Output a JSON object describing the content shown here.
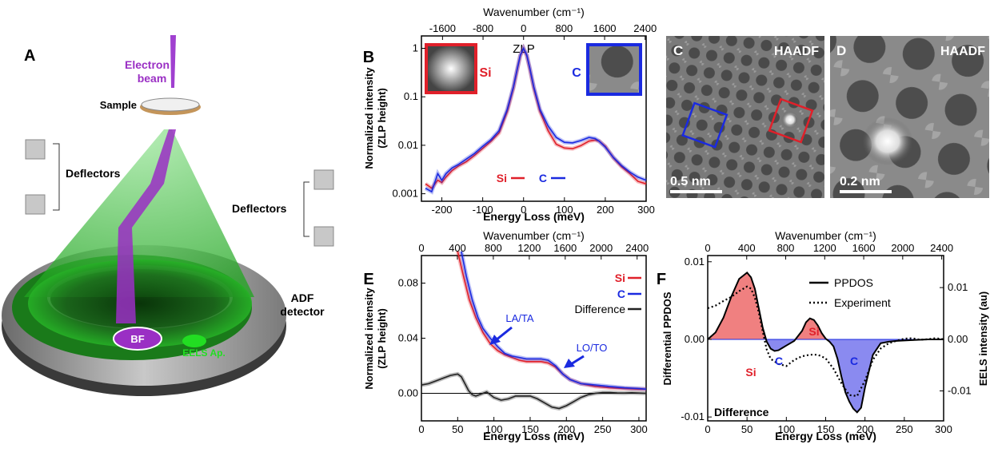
{
  "panels": {
    "A": {
      "letter": "A",
      "electron_beam": "Electron beam",
      "sample": "Sample",
      "deflectors_left": "Deflectors",
      "deflectors_right": "Deflectors",
      "adf_detector": "ADF detector",
      "bf": "BF",
      "eels_ap": "EELS Ap."
    },
    "C": {
      "letter": "C",
      "label": "HAADF",
      "scale": "0.5 nm"
    },
    "D": {
      "letter": "D",
      "label": "HAADF",
      "scale": "0.2 nm"
    }
  },
  "colors": {
    "si": "#e0202a",
    "c": "#1a2ae0",
    "difference": "#222222",
    "green": "#22dd22",
    "purple": "#9a2fc4"
  },
  "chart_data": [
    {
      "panel": "B",
      "type": "line",
      "xlabel": "Energy Loss (meV)",
      "ylabel": "Normalized intensity (ZLP height)",
      "top_xlabel": "Wavenumber (cm⁻¹)",
      "xlim": [
        -250,
        300
      ],
      "ylim": [
        0.0007,
        1.8
      ],
      "y_scale": "log",
      "x_ticks": [
        "-200",
        "-100",
        "0",
        "100",
        "200",
        "300"
      ],
      "y_ticks": [
        "0.001",
        "0.01",
        "0.1",
        "1"
      ],
      "top_ticks": [
        "-1600",
        "-800",
        "0",
        "800",
        "1600",
        "2400"
      ],
      "annotations": {
        "zlp": "ZLP",
        "inset_si": "Si",
        "inset_c": "C"
      },
      "legend": {
        "si": "Si",
        "c": "C"
      },
      "series": [
        {
          "name": "Si",
          "color": "#e0202a",
          "x": [
            -240,
            -225,
            -210,
            -200,
            -190,
            -175,
            -160,
            -140,
            -120,
            -100,
            -80,
            -60,
            -40,
            -25,
            -15,
            -8,
            0,
            8,
            15,
            25,
            40,
            60,
            80,
            100,
            120,
            140,
            160,
            175,
            185,
            200,
            220,
            240,
            260,
            280,
            300
          ],
          "y": [
            0.0016,
            0.0013,
            0.0019,
            0.0017,
            0.0022,
            0.003,
            0.0037,
            0.0046,
            0.0062,
            0.0086,
            0.012,
            0.018,
            0.05,
            0.15,
            0.38,
            0.7,
            1.0,
            0.7,
            0.38,
            0.15,
            0.05,
            0.02,
            0.0105,
            0.0088,
            0.0085,
            0.0098,
            0.0122,
            0.0128,
            0.0122,
            0.0095,
            0.0055,
            0.0036,
            0.0026,
            0.0018,
            0.0016
          ]
        },
        {
          "name": "C",
          "color": "#1a2ae0",
          "x": [
            -240,
            -225,
            -210,
            -200,
            -190,
            -175,
            -160,
            -140,
            -120,
            -100,
            -80,
            -60,
            -40,
            -25,
            -15,
            -8,
            0,
            8,
            15,
            25,
            40,
            60,
            80,
            100,
            120,
            140,
            160,
            175,
            185,
            200,
            220,
            240,
            260,
            280,
            300
          ],
          "y": [
            0.0013,
            0.0011,
            0.0026,
            0.0019,
            0.0026,
            0.0034,
            0.004,
            0.0052,
            0.0068,
            0.0095,
            0.013,
            0.02,
            0.055,
            0.16,
            0.4,
            0.72,
            1.0,
            0.72,
            0.4,
            0.16,
            0.055,
            0.025,
            0.0145,
            0.0115,
            0.0112,
            0.0125,
            0.0145,
            0.0138,
            0.0122,
            0.0092,
            0.0056,
            0.0038,
            0.0028,
            0.0022,
            0.0019
          ]
        }
      ]
    },
    {
      "panel": "E",
      "type": "line",
      "xlabel": "Energy Loss (meV)",
      "ylabel": "Normalized intensity (ZLP height)",
      "top_xlabel": "Wavenumber (cm⁻¹)",
      "xlim": [
        0,
        310
      ],
      "ylim": [
        -0.02,
        0.1
      ],
      "x_ticks": [
        "0",
        "50",
        "100",
        "150",
        "200",
        "250",
        "300"
      ],
      "y_ticks": [
        "0.00",
        "0.04",
        "0.08"
      ],
      "top_ticks": [
        "0",
        "400",
        "800",
        "1200",
        "1600",
        "2000",
        "2400"
      ],
      "legend": {
        "si": "Si",
        "c": "C",
        "difference": "Difference"
      },
      "annotations": {
        "la_ta": "LA/TA",
        "lo_to": "LO/TO"
      },
      "series": [
        {
          "name": "Si",
          "color": "#e0202a",
          "x": [
            50,
            58,
            66,
            75,
            85,
            95,
            105,
            115,
            125,
            135,
            145,
            155,
            165,
            175,
            185,
            195,
            205,
            220,
            240,
            260,
            280,
            300,
            310
          ],
          "y": [
            0.103,
            0.085,
            0.068,
            0.055,
            0.044,
            0.036,
            0.031,
            0.028,
            0.026,
            0.024,
            0.023,
            0.023,
            0.023,
            0.022,
            0.019,
            0.014,
            0.01,
            0.007,
            0.005,
            0.004,
            0.0035,
            0.003,
            0.003
          ]
        },
        {
          "name": "C",
          "color": "#1a2ae0",
          "x": [
            55,
            62,
            70,
            78,
            85,
            95,
            105,
            115,
            125,
            135,
            145,
            155,
            165,
            175,
            185,
            195,
            205,
            220,
            240,
            260,
            280,
            300,
            310
          ],
          "y": [
            0.103,
            0.085,
            0.068,
            0.055,
            0.047,
            0.04,
            0.034,
            0.029,
            0.027,
            0.026,
            0.025,
            0.025,
            0.025,
            0.024,
            0.02,
            0.014,
            0.01,
            0.007,
            0.006,
            0.005,
            0.004,
            0.0035,
            0.003
          ]
        },
        {
          "name": "Difference",
          "color": "#222222",
          "x": [
            0,
            10,
            20,
            30,
            40,
            50,
            55,
            60,
            65,
            70,
            75,
            80,
            90,
            100,
            110,
            120,
            130,
            140,
            150,
            160,
            170,
            180,
            190,
            200,
            210,
            220,
            230,
            240,
            250,
            260,
            270,
            280,
            290,
            300,
            310
          ],
          "y": [
            0.006,
            0.007,
            0.009,
            0.011,
            0.013,
            0.014,
            0.012,
            0.007,
            0.002,
            -0.001,
            -0.002,
            -0.001,
            0.001,
            -0.003,
            -0.005,
            -0.004,
            -0.002,
            -0.002,
            -0.002,
            -0.004,
            -0.007,
            -0.01,
            -0.011,
            -0.009,
            -0.006,
            -0.003,
            -0.001,
            0.0,
            0.0005,
            0.0005,
            0.0003,
            0.0002,
            0.0004,
            0.0002,
            0.0
          ]
        }
      ]
    },
    {
      "panel": "F",
      "type": "area",
      "xlabel": "Energy Loss (meV)",
      "ylabel": "Differential PPDOS",
      "y2label": "EELS intensity (au)",
      "top_xlabel": "Wavenumber (cm⁻¹)",
      "xlim": [
        0,
        300
      ],
      "ylim": [
        -0.0105,
        0.0108
      ],
      "y2lim": [
        -0.0158,
        0.0162
      ],
      "x_ticks": [
        "0",
        "50",
        "100",
        "150",
        "200",
        "250",
        "300"
      ],
      "y_ticks": [
        "0.01",
        "0.00",
        "-0.01"
      ],
      "y2_ticks": [
        "0.01",
        "0.00",
        "-0.01"
      ],
      "top_ticks": [
        "0",
        "400",
        "800",
        "1200",
        "1600",
        "2000",
        "2400"
      ],
      "legend": {
        "ppdos": "PPDOS",
        "experiment": "Experiment"
      },
      "annotations": {
        "difference": "Difference",
        "si_1": "Si",
        "c_1": "C",
        "si_2": "Si",
        "c_2": "C"
      },
      "series": [
        {
          "name": "PPDOS",
          "style": "solid",
          "x": [
            0,
            10,
            20,
            30,
            40,
            50,
            55,
            60,
            65,
            70,
            75,
            80,
            85,
            90,
            95,
            100,
            110,
            120,
            125,
            130,
            135,
            140,
            145,
            150,
            155,
            160,
            165,
            170,
            175,
            180,
            185,
            190,
            195,
            200,
            210,
            220,
            230,
            240,
            260,
            280,
            300
          ],
          "y": [
            0.0,
            0.0009,
            0.0028,
            0.0055,
            0.0078,
            0.0086,
            0.008,
            0.0065,
            0.004,
            0.0015,
            -0.0003,
            -0.0012,
            -0.0015,
            -0.0014,
            -0.0011,
            -0.0008,
            -0.0002,
            0.0011,
            0.0022,
            0.0027,
            0.0025,
            0.0018,
            0.0008,
            0.0001,
            -0.0003,
            -0.0009,
            -0.0025,
            -0.0048,
            -0.0068,
            -0.008,
            -0.0089,
            -0.0094,
            -0.0088,
            -0.0062,
            -0.002,
            -0.0005,
            -0.0003,
            -0.0002,
            -0.0001,
            0.0,
            0.0
          ]
        },
        {
          "name": "Experiment",
          "style": "dotted",
          "x": [
            0,
            10,
            20,
            30,
            40,
            50,
            55,
            60,
            65,
            70,
            75,
            80,
            90,
            100,
            110,
            120,
            130,
            140,
            150,
            160,
            170,
            180,
            190,
            200,
            210,
            220,
            230,
            240,
            250,
            260,
            270,
            280,
            290,
            300
          ],
          "y": [
            0.006,
            0.0065,
            0.0074,
            0.0082,
            0.0093,
            0.0102,
            0.0098,
            0.008,
            0.0052,
            0.0015,
            -0.002,
            -0.0038,
            -0.0048,
            -0.0052,
            -0.004,
            -0.0033,
            -0.003,
            -0.003,
            -0.0037,
            -0.0057,
            -0.0085,
            -0.0108,
            -0.011,
            -0.008,
            -0.004,
            -0.0018,
            -0.0008,
            -0.0003,
            0.0001,
            0.0002,
            -0.0001,
            0.0,
            0.0002,
            0.0
          ]
        }
      ]
    }
  ]
}
